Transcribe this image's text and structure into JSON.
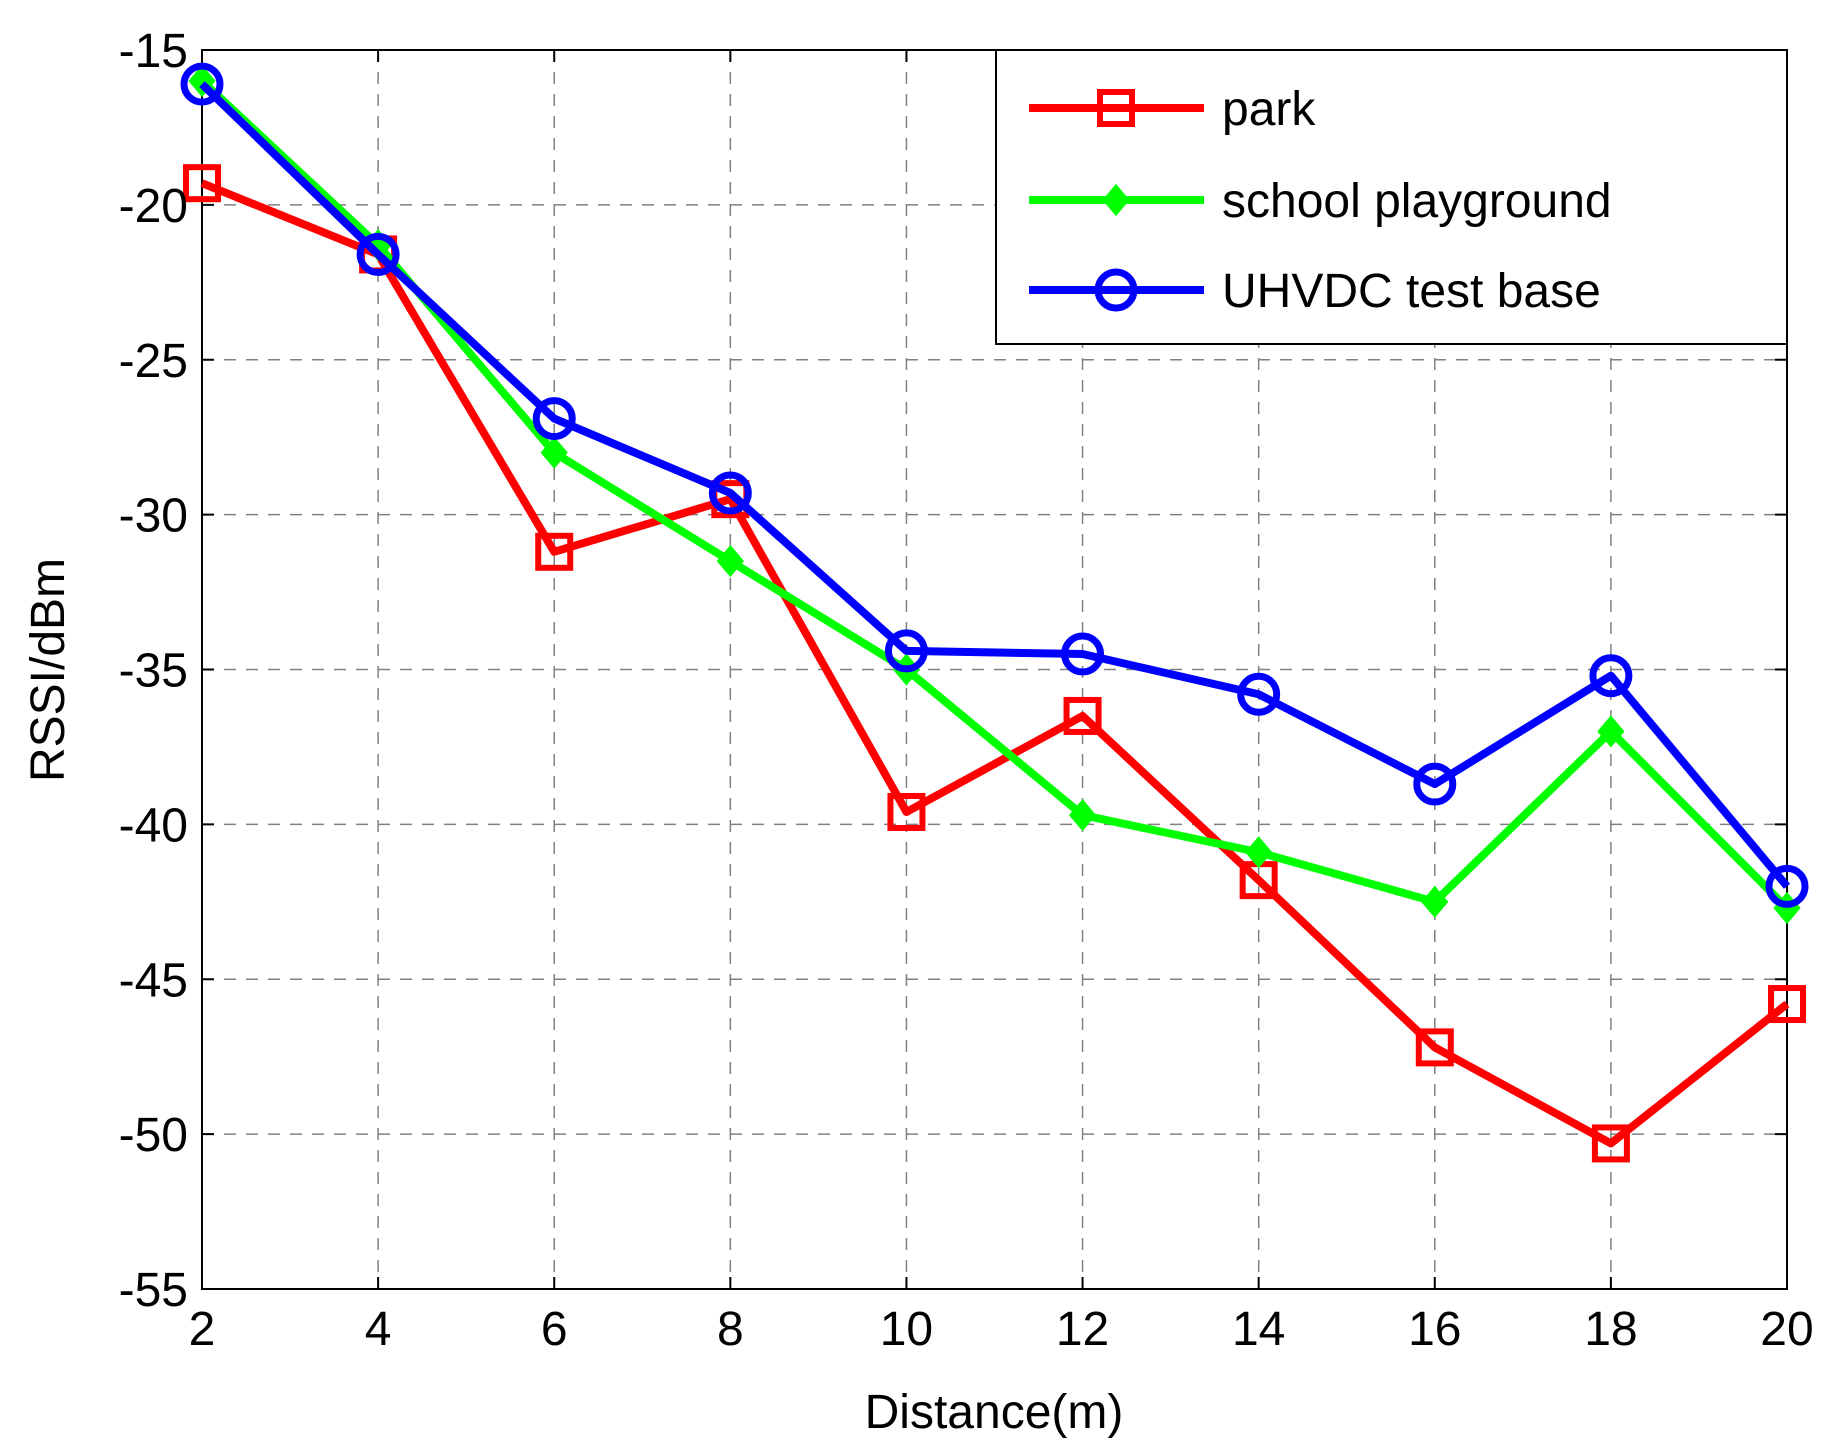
{
  "chart_data": {
    "type": "line",
    "title": "",
    "xlabel": "Distance(m)",
    "ylabel": "RSSI/dBm",
    "x": [
      2,
      4,
      6,
      8,
      10,
      12,
      14,
      16,
      18,
      20
    ],
    "xlim": [
      2,
      20
    ],
    "ylim": [
      -55,
      -15
    ],
    "xticks": [
      "2",
      "4",
      "6",
      "8",
      "10",
      "12",
      "14",
      "16",
      "18",
      "20"
    ],
    "yticks": [
      "-15",
      "-20",
      "-25",
      "-30",
      "-35",
      "-40",
      "-45",
      "-50",
      "-55"
    ],
    "grid": true,
    "legend_position": "top-right",
    "series": [
      {
        "name": "park",
        "color": "#ff0000",
        "marker": "square",
        "values": [
          -19.3,
          -21.6,
          -31.2,
          -29.5,
          -39.6,
          -36.5,
          -41.8,
          -47.2,
          -50.3,
          -45.8
        ]
      },
      {
        "name": "school playground",
        "color": "#00ff00",
        "marker": "diamond",
        "values": [
          -16.0,
          -21.3,
          -28.0,
          -31.5,
          -35.0,
          -39.7,
          -40.9,
          -42.5,
          -37.0,
          -42.7
        ]
      },
      {
        "name": "UHVDC test base",
        "color": "#0000ff",
        "marker": "circle",
        "values": [
          -16.1,
          -21.6,
          -26.9,
          -29.3,
          -34.4,
          -34.5,
          -35.8,
          -38.7,
          -35.2,
          -42.0
        ]
      }
    ]
  }
}
